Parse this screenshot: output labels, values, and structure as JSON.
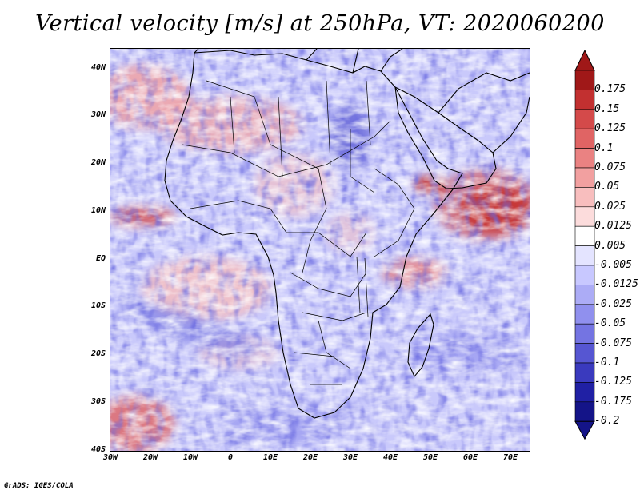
{
  "title": "Vertical velocity [m/s] at 250hPa, VT: 2020060200",
  "footer": "GrADS: IGES/COLA",
  "axes": {
    "lat_labels": [
      "40N",
      "30N",
      "20N",
      "10N",
      "EQ",
      "10S",
      "20S",
      "30S",
      "40S"
    ],
    "lon_labels": [
      "30W",
      "20W",
      "10W",
      "0",
      "10E",
      "20E",
      "30E",
      "40E",
      "50E",
      "60E",
      "70E"
    ]
  },
  "colorbar": {
    "labels": [
      "0.175",
      "0.15",
      "0.125",
      "0.1",
      "0.075",
      "0.05",
      "0.025",
      "0.0125",
      "0.005",
      "-0.005",
      "-0.0125",
      "-0.025",
      "-0.05",
      "-0.075",
      "-0.1",
      "-0.125",
      "-0.175",
      "-0.2"
    ],
    "colors": [
      "#a01818",
      "#c23030",
      "#d44a4a",
      "#e06464",
      "#ea8282",
      "#f2a0a0",
      "#f8bebe",
      "#fcdcdc",
      "#ffffff",
      "#e4e4ff",
      "#c8c8ff",
      "#acacf6",
      "#9090ee",
      "#7474e2",
      "#5656d2",
      "#3a3abe",
      "#2020a4",
      "#141488"
    ]
  }
}
